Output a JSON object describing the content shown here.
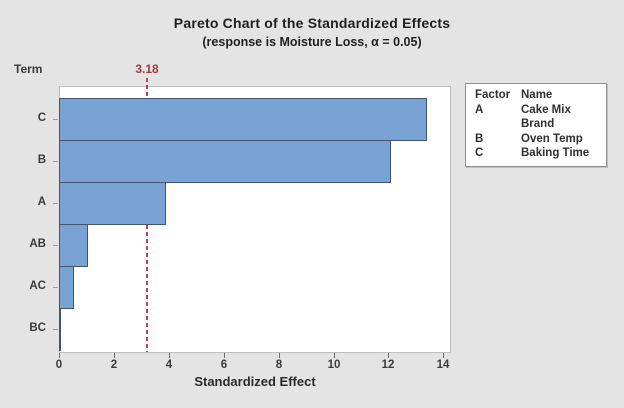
{
  "chart_data": {
    "type": "bar",
    "orientation": "horizontal",
    "title": "Pareto Chart of the Standardized Effects",
    "subtitle": "(response is Moisture Loss, α = 0.05)",
    "xlabel": "Standardized Effect",
    "ylabel": "Term",
    "categories": [
      "C",
      "B",
      "A",
      "AB",
      "AC",
      "BC"
    ],
    "values": [
      13.4,
      12.1,
      3.9,
      1.05,
      0.55,
      0.08
    ],
    "xlim": [
      0,
      14.3
    ],
    "x_ticks": [
      0,
      2,
      4,
      6,
      8,
      10,
      12,
      14
    ],
    "grid": false,
    "legend_position": "right",
    "reference_line": {
      "value": 3.18,
      "label": "3.18"
    },
    "colors": {
      "bar_fill": "#7aa3d5",
      "bar_edge": "#42556a",
      "reference_line": "#bc424e",
      "reference_label": "#9e3b44",
      "figure_background": "#e4e4e4",
      "plot_background": "#ffffff"
    }
  },
  "legend": {
    "columns": [
      "Factor",
      "Name"
    ],
    "rows": [
      {
        "factor": "A",
        "name": "Cake Mix Brand"
      },
      {
        "factor": "B",
        "name": "Oven Temp"
      },
      {
        "factor": "C",
        "name": "Baking Time"
      }
    ]
  }
}
